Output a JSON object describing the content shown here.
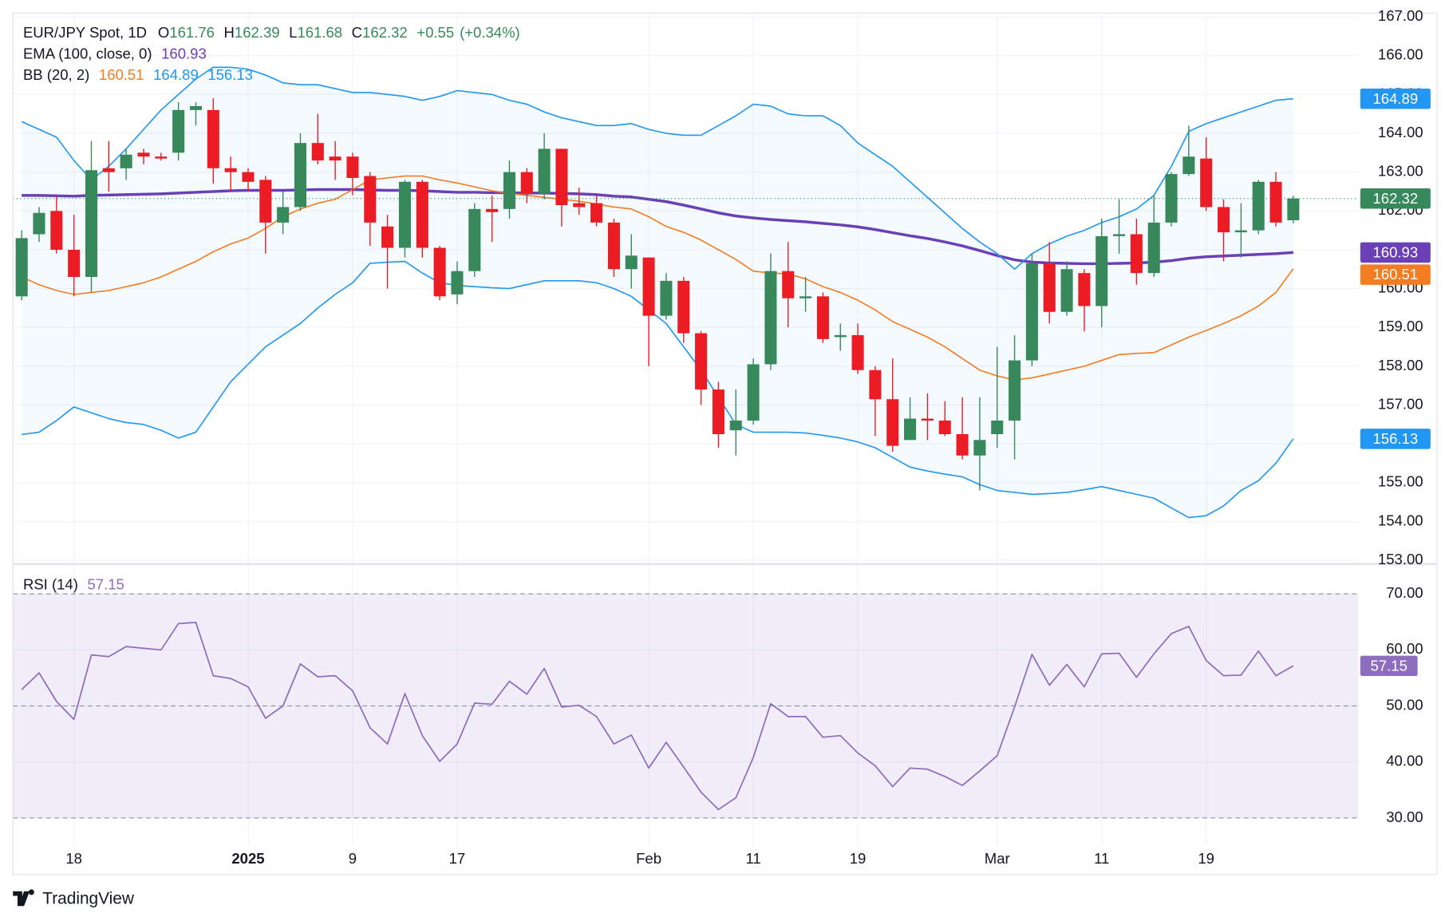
{
  "chart_data": [
    {
      "type": "candlestick",
      "title": "EUR/JPY Spot, 1D",
      "categories": [
        null,
        null,
        null,
        "18",
        null,
        null,
        null,
        null,
        null,
        null,
        null,
        null,
        null,
        "2025",
        null,
        null,
        null,
        null,
        null,
        "9",
        null,
        null,
        null,
        null,
        null,
        "17",
        null,
        null,
        null,
        null,
        null,
        null,
        null,
        null,
        null,
        null,
        "Feb",
        null,
        null,
        null,
        null,
        null,
        "11",
        null,
        null,
        null,
        null,
        null,
        "19",
        null,
        null,
        null,
        null,
        null,
        null,
        null,
        "Mar",
        null,
        null,
        null,
        null,
        null,
        "11",
        null,
        null,
        null,
        null,
        null,
        "19",
        null,
        null,
        null,
        null,
        null
      ],
      "open": [
        159.8,
        161.4,
        162.0,
        161.0,
        160.3,
        163.1,
        163.1,
        163.5,
        163.4,
        163.5,
        164.6,
        164.6,
        163.1,
        163.0,
        162.8,
        161.7,
        162.1,
        163.75,
        163.4,
        163.4,
        162.9,
        161.6,
        161.05,
        162.75,
        161.05,
        159.85,
        160.45,
        162.05,
        162.05,
        163.0,
        162.45,
        163.6,
        162.2,
        162.2,
        161.7,
        160.5,
        160.8,
        159.3,
        160.2,
        158.85,
        157.4,
        156.35,
        156.6,
        158.05,
        160.45,
        159.75,
        159.8,
        158.75,
        158.8,
        157.9,
        157.15,
        156.1,
        156.65,
        156.6,
        156.25,
        155.7,
        156.25,
        156.6,
        158.15,
        160.65,
        159.4,
        160.4,
        159.55,
        161.35,
        161.4,
        160.4,
        161.7,
        162.95,
        163.35,
        162.1,
        161.45,
        161.5,
        162.75,
        161.76
      ],
      "high": [
        161.5,
        162.1,
        162.4,
        161.9,
        163.8,
        163.8,
        163.6,
        163.6,
        163.5,
        164.8,
        164.8,
        164.9,
        163.4,
        163.1,
        162.9,
        162.5,
        164.0,
        164.5,
        163.8,
        163.5,
        163.0,
        161.9,
        162.8,
        162.8,
        161.1,
        160.7,
        162.2,
        162.4,
        163.3,
        163.1,
        164.0,
        163.6,
        162.6,
        162.4,
        161.8,
        161.4,
        160.8,
        160.4,
        160.3,
        158.9,
        157.6,
        157.4,
        158.2,
        160.9,
        161.2,
        160.3,
        159.9,
        159.1,
        159.1,
        158.0,
        158.2,
        157.2,
        157.3,
        157.1,
        157.2,
        157.2,
        158.5,
        158.8,
        160.9,
        161.2,
        160.7,
        160.5,
        161.8,
        162.3,
        161.8,
        162.4,
        163.0,
        164.2,
        163.9,
        162.3,
        162.2,
        162.8,
        163.0,
        162.39
      ],
      "low": [
        159.7,
        161.2,
        160.9,
        159.8,
        159.9,
        162.5,
        162.8,
        163.2,
        163.3,
        163.3,
        164.2,
        162.7,
        162.5,
        162.5,
        160.9,
        161.4,
        162.0,
        163.2,
        162.8,
        162.4,
        161.1,
        160.0,
        160.8,
        160.8,
        159.7,
        159.6,
        160.3,
        161.2,
        161.8,
        162.2,
        162.3,
        161.6,
        161.9,
        161.6,
        160.3,
        160.0,
        158.0,
        159.2,
        158.6,
        157.0,
        155.9,
        155.7,
        156.5,
        157.9,
        159.0,
        159.4,
        158.6,
        158.4,
        157.8,
        156.2,
        155.8,
        156.1,
        156.1,
        156.2,
        155.6,
        154.8,
        155.9,
        155.6,
        158.0,
        159.1,
        159.3,
        158.9,
        159.0,
        160.9,
        160.1,
        160.3,
        161.6,
        162.9,
        162.0,
        160.7,
        160.8,
        161.4,
        161.6,
        161.68
      ],
      "close": [
        161.3,
        161.95,
        161.0,
        160.3,
        163.05,
        163.0,
        163.45,
        163.4,
        163.35,
        164.6,
        164.7,
        163.1,
        163.0,
        162.75,
        161.7,
        162.1,
        163.75,
        163.3,
        163.3,
        162.85,
        161.7,
        161.05,
        162.75,
        161.05,
        159.8,
        160.45,
        162.05,
        161.97,
        163.0,
        162.45,
        163.6,
        162.15,
        162.1,
        161.7,
        160.5,
        160.85,
        159.3,
        160.2,
        158.85,
        157.4,
        156.25,
        156.6,
        158.05,
        160.45,
        159.75,
        159.8,
        158.7,
        158.8,
        157.9,
        157.15,
        155.95,
        156.65,
        156.6,
        156.25,
        155.7,
        156.1,
        156.6,
        158.15,
        160.65,
        159.4,
        160.5,
        159.55,
        161.35,
        161.4,
        160.4,
        161.7,
        162.95,
        163.4,
        162.1,
        161.45,
        161.5,
        162.75,
        161.7,
        162.32
      ],
      "up_color": "#37895b",
      "down_color": "#eb1c24",
      "ohlc_labels": [
        "O",
        "H",
        "L",
        "C"
      ],
      "change": "+0.55",
      "change_pct": "(+0.34%)",
      "series": [
        {
          "name": "EMA (100, close, 0)",
          "lines": [
            {
              "color": "#6a3fb8",
              "values": [
                162.4,
                162.4,
                162.39,
                162.38,
                162.4,
                162.41,
                162.42,
                162.43,
                162.44,
                162.46,
                162.48,
                162.5,
                162.52,
                162.53,
                162.53,
                162.53,
                162.54,
                162.55,
                162.55,
                162.55,
                162.54,
                162.53,
                162.53,
                162.52,
                162.5,
                162.48,
                162.48,
                162.47,
                162.47,
                162.46,
                162.46,
                162.45,
                162.44,
                162.42,
                162.38,
                162.36,
                162.3,
                162.24,
                162.15,
                162.05,
                161.95,
                161.87,
                161.82,
                161.78,
                161.75,
                161.72,
                161.68,
                161.64,
                161.59,
                161.52,
                161.44,
                161.36,
                161.29,
                161.2,
                161.1,
                160.98,
                160.85,
                160.74,
                160.68,
                160.66,
                160.65,
                160.64,
                160.64,
                160.65,
                160.66,
                160.68,
                160.72,
                160.78,
                160.82,
                160.84,
                160.86,
                160.88,
                160.9,
                160.93
              ]
            }
          ]
        },
        {
          "name": "BB (20, 2)",
          "lines": [
            {
              "color": "#f57c20",
              "values": [
                160.3,
                160.1,
                159.95,
                159.85,
                159.9,
                159.95,
                160.05,
                160.15,
                160.3,
                160.5,
                160.7,
                160.95,
                161.15,
                161.3,
                161.55,
                161.85,
                162.05,
                162.2,
                162.3,
                162.55,
                162.8,
                162.85,
                162.9,
                162.9,
                162.8,
                162.72,
                162.62,
                162.52,
                162.45,
                162.4,
                162.35,
                162.3,
                162.25,
                162.18,
                162.1,
                162.05,
                161.85,
                161.6,
                161.45,
                161.25,
                161.0,
                160.75,
                160.45,
                160.4,
                160.38,
                160.25,
                160.05,
                159.9,
                159.7,
                159.45,
                159.15,
                158.95,
                158.75,
                158.5,
                158.2,
                157.9,
                157.75,
                157.65,
                157.7,
                157.8,
                157.9,
                158.0,
                158.15,
                158.3,
                158.33,
                158.35,
                158.55,
                158.75,
                158.92,
                159.1,
                159.3,
                159.55,
                159.9,
                160.51
              ]
            },
            {
              "color": "#2196f3",
              "values": [
                164.3,
                164.1,
                163.9,
                163.3,
                162.8,
                163.15,
                163.6,
                164.1,
                164.6,
                165.0,
                165.4,
                165.7,
                165.7,
                165.65,
                165.5,
                165.3,
                165.25,
                165.25,
                165.15,
                165.05,
                165.05,
                165.0,
                164.95,
                164.85,
                164.95,
                165.1,
                165.05,
                165.0,
                164.85,
                164.75,
                164.55,
                164.4,
                164.3,
                164.2,
                164.2,
                164.25,
                164.1,
                164.0,
                163.95,
                163.95,
                164.2,
                164.45,
                164.75,
                164.7,
                164.5,
                164.45,
                164.45,
                164.2,
                163.75,
                163.45,
                163.15,
                162.75,
                162.35,
                161.95,
                161.55,
                161.2,
                160.9,
                160.5,
                160.9,
                161.15,
                161.35,
                161.5,
                161.7,
                161.85,
                162.05,
                162.4,
                163.15,
                164.05,
                164.25,
                164.4,
                164.55,
                164.7,
                164.85,
                164.89
              ]
            },
            {
              "color": "#2196f3",
              "values": [
                156.24,
                156.3,
                156.6,
                156.95,
                156.8,
                156.65,
                156.55,
                156.5,
                156.35,
                156.15,
                156.3,
                156.95,
                157.6,
                158.05,
                158.5,
                158.8,
                159.1,
                159.5,
                159.85,
                160.15,
                160.65,
                160.68,
                160.7,
                160.4,
                160.15,
                160.08,
                160.05,
                160.02,
                160.0,
                160.1,
                160.2,
                160.2,
                160.2,
                160.15,
                160.0,
                159.8,
                159.45,
                159.1,
                158.5,
                157.9,
                157.2,
                156.5,
                156.3,
                156.3,
                156.3,
                156.28,
                156.22,
                156.15,
                156.05,
                155.9,
                155.65,
                155.4,
                155.3,
                155.22,
                155.15,
                154.95,
                154.8,
                154.75,
                154.7,
                154.72,
                154.75,
                154.82,
                154.9,
                154.8,
                154.7,
                154.6,
                154.35,
                154.1,
                154.15,
                154.4,
                154.8,
                155.05,
                155.5,
                156.13
              ]
            }
          ]
        }
      ],
      "ylim": [
        153,
        167
      ],
      "yticks": [
        {
          "value": 153,
          "label": "153.00"
        },
        {
          "value": 154,
          "label": "154.00"
        },
        {
          "value": 155,
          "label": "155.00"
        },
        {
          "value": 156,
          "label": "156.00"
        },
        {
          "value": 157,
          "label": "157.00"
        },
        {
          "value": 158,
          "label": "158.00"
        },
        {
          "value": 159,
          "label": "159.00"
        },
        {
          "value": 160,
          "label": "160.00"
        },
        {
          "value": 161,
          "label": "161.00"
        },
        {
          "value": 162,
          "label": "162.00"
        },
        {
          "value": 163,
          "label": "163.00"
        },
        {
          "value": 164,
          "label": "164.00"
        },
        {
          "value": 165,
          "label": "165.00"
        },
        {
          "value": 166,
          "label": "166.00"
        },
        {
          "value": 167,
          "label": "167.00"
        }
      ],
      "grid": true,
      "last_price_line": true
    },
    {
      "type": "line",
      "title": "RSI (14)",
      "series": [
        {
          "name": "RSI (14)",
          "color": "#8e6cc0",
          "values": [
            52.9,
            55.9,
            50.8,
            47.6,
            59.1,
            58.8,
            60.6,
            60.3,
            60.0,
            64.7,
            64.9,
            55.4,
            54.9,
            53.4,
            47.8,
            50.0,
            57.5,
            55.2,
            55.4,
            52.7,
            46.1,
            43.2,
            52.2,
            44.7,
            40.1,
            43.2,
            50.5,
            50.3,
            54.4,
            52.1,
            56.7,
            49.8,
            50.1,
            48.1,
            43.2,
            44.8,
            38.9,
            43.5,
            39.1,
            34.6,
            31.5,
            33.6,
            40.8,
            50.4,
            48.1,
            48.1,
            44.4,
            44.7,
            41.6,
            39.3,
            35.6,
            38.9,
            38.7,
            37.4,
            35.8,
            38.4,
            41.1,
            49.8,
            59.2,
            53.7,
            57.4,
            53.4,
            59.3,
            59.4,
            55.1,
            59.3,
            62.9,
            64.2,
            58.1,
            55.4,
            55.5,
            59.8,
            55.4,
            57.15
          ]
        }
      ],
      "ylim": [
        25,
        75
      ],
      "yticks": [
        {
          "value": 30,
          "label": "30.00"
        },
        {
          "value": 40,
          "label": "40.00"
        },
        {
          "value": 50,
          "label": "50.00"
        },
        {
          "value": 60,
          "label": "60.00"
        },
        {
          "value": 70,
          "label": "70.00"
        }
      ],
      "levels": [
        70,
        50,
        30
      ],
      "grid": true
    }
  ],
  "brand": "TradingView"
}
